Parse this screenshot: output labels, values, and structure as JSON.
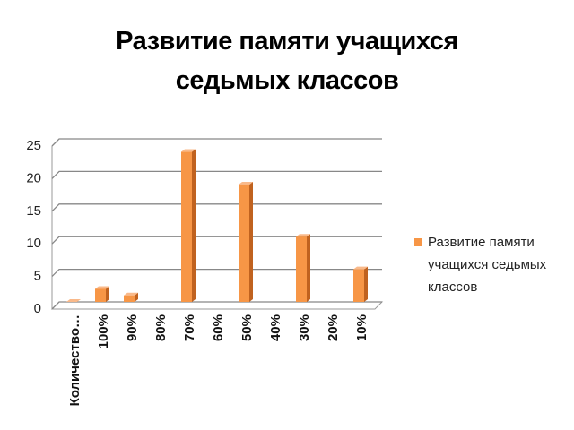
{
  "chart_data": {
    "type": "bar",
    "title": "Развитие памяти учащихся седьмых классов",
    "categories": [
      "Количество…",
      "100%",
      "90%",
      "80%",
      "70%",
      "60%",
      "50%",
      "40%",
      "30%",
      "20%",
      "10%"
    ],
    "series": [
      {
        "name": "Развитие памяти учащихся седьмых классов",
        "color": "#f79646",
        "values": [
          0,
          2,
          1,
          null,
          23,
          null,
          18,
          null,
          10,
          null,
          5
        ]
      }
    ],
    "ylim": [
      0,
      25
    ],
    "yticks": [
      0,
      5,
      10,
      15,
      20,
      25
    ],
    "grid": true,
    "legend": "right"
  }
}
